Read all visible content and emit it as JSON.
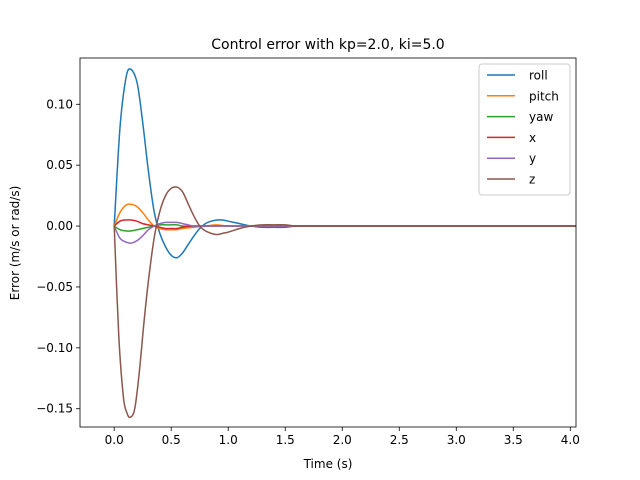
{
  "chart_data": {
    "type": "line",
    "title": "Control error with kp=2.0, ki=5.0",
    "xlabel": "Time (s)",
    "ylabel": "Error (m/s or rad/s)",
    "xlim": [
      -0.3,
      4.05
    ],
    "ylim": [
      -0.165,
      0.138
    ],
    "xticks": [
      0.0,
      0.5,
      1.0,
      1.5,
      2.0,
      2.5,
      3.0,
      3.5,
      4.0
    ],
    "xtick_labels": [
      "0.0",
      "0.5",
      "1.0",
      "1.5",
      "2.0",
      "2.5",
      "3.0",
      "3.5",
      "4.0"
    ],
    "yticks": [
      -0.15,
      -0.1,
      -0.05,
      0.0,
      0.05,
      0.1
    ],
    "ytick_labels": [
      "−0.15",
      "−0.10",
      "−0.05",
      "0.00",
      "0.05",
      "0.10"
    ],
    "grid": false,
    "legend_position": "upper-right",
    "series": [
      {
        "name": "roll",
        "color": "#1f77b4",
        "x": [
          0.0,
          0.05,
          0.1,
          0.14,
          0.2,
          0.25,
          0.3,
          0.35,
          0.4,
          0.45,
          0.5,
          0.55,
          0.6,
          0.65,
          0.7,
          0.75,
          0.8,
          0.85,
          0.9,
          0.95,
          1.0,
          1.1,
          1.2,
          1.3,
          1.4,
          1.5,
          1.6,
          1.8,
          2.0,
          2.5,
          3.0,
          3.5,
          4.05
        ],
        "y": [
          0.0,
          0.08,
          0.12,
          0.129,
          0.118,
          0.085,
          0.045,
          0.012,
          -0.006,
          -0.017,
          -0.024,
          -0.026,
          -0.022,
          -0.015,
          -0.008,
          -0.002,
          0.002,
          0.004,
          0.005,
          0.005,
          0.004,
          0.002,
          0.0,
          -0.001,
          -0.001,
          -0.001,
          0.0,
          0.0,
          0.0,
          0.0,
          0.0,
          0.0,
          0.0
        ]
      },
      {
        "name": "pitch",
        "color": "#ff7f0e",
        "x": [
          0.0,
          0.05,
          0.1,
          0.14,
          0.2,
          0.25,
          0.3,
          0.35,
          0.4,
          0.45,
          0.5,
          0.55,
          0.6,
          0.7,
          0.8,
          0.9,
          1.0,
          1.2,
          1.5,
          2.0,
          4.05
        ],
        "y": [
          0.0,
          0.011,
          0.017,
          0.018,
          0.016,
          0.011,
          0.005,
          0.0,
          -0.002,
          -0.003,
          -0.003,
          -0.003,
          -0.002,
          -0.001,
          0.0,
          0.001,
          0.0,
          0.0,
          0.0,
          0.0,
          0.0
        ]
      },
      {
        "name": "yaw",
        "color": "#2ca02c",
        "x": [
          0.0,
          0.05,
          0.1,
          0.15,
          0.2,
          0.25,
          0.3,
          0.35,
          0.4,
          0.45,
          0.5,
          0.55,
          0.6,
          0.7,
          0.8,
          1.0,
          1.5,
          4.05
        ],
        "y": [
          0.0,
          -0.003,
          -0.004,
          -0.004,
          -0.003,
          -0.002,
          -0.001,
          0.0,
          0.001,
          0.001,
          0.001,
          0.001,
          0.0,
          0.0,
          0.0,
          0.0,
          0.0,
          0.0
        ]
      },
      {
        "name": "x",
        "color": "#d62728",
        "x": [
          0.0,
          0.05,
          0.1,
          0.15,
          0.2,
          0.25,
          0.3,
          0.35,
          0.4,
          0.45,
          0.5,
          0.55,
          0.6,
          0.7,
          0.8,
          1.0,
          1.5,
          4.05
        ],
        "y": [
          0.0,
          0.004,
          0.005,
          0.005,
          0.004,
          0.002,
          0.001,
          0.0,
          -0.001,
          -0.002,
          -0.002,
          -0.002,
          -0.001,
          0.0,
          0.0,
          0.0,
          0.0,
          0.0
        ]
      },
      {
        "name": "y",
        "color": "#9467bd",
        "x": [
          0.0,
          0.05,
          0.1,
          0.15,
          0.2,
          0.25,
          0.3,
          0.35,
          0.4,
          0.45,
          0.5,
          0.55,
          0.6,
          0.65,
          0.7,
          0.8,
          1.0,
          1.5,
          4.05
        ],
        "y": [
          0.0,
          -0.01,
          -0.013,
          -0.014,
          -0.012,
          -0.008,
          -0.003,
          0.0,
          0.002,
          0.003,
          0.003,
          0.003,
          0.002,
          0.001,
          0.0,
          0.0,
          0.0,
          0.0,
          0.0
        ]
      },
      {
        "name": "z",
        "color": "#8c564b",
        "x": [
          0.0,
          0.04,
          0.08,
          0.11,
          0.14,
          0.18,
          0.22,
          0.26,
          0.3,
          0.35,
          0.4,
          0.45,
          0.5,
          0.55,
          0.6,
          0.65,
          0.7,
          0.75,
          0.8,
          0.85,
          0.9,
          0.95,
          1.0,
          1.1,
          1.2,
          1.3,
          1.4,
          1.5,
          1.6,
          1.8,
          2.0,
          2.5,
          3.0,
          3.5,
          4.05
        ],
        "y": [
          0.0,
          -0.09,
          -0.14,
          -0.153,
          -0.157,
          -0.15,
          -0.12,
          -0.08,
          -0.045,
          -0.01,
          0.012,
          0.025,
          0.031,
          0.032,
          0.028,
          0.018,
          0.008,
          0.0,
          -0.004,
          -0.006,
          -0.007,
          -0.006,
          -0.005,
          -0.002,
          0.0,
          0.001,
          0.001,
          0.001,
          0.0,
          0.0,
          0.0,
          0.0,
          0.0,
          0.0,
          0.0
        ]
      }
    ]
  }
}
